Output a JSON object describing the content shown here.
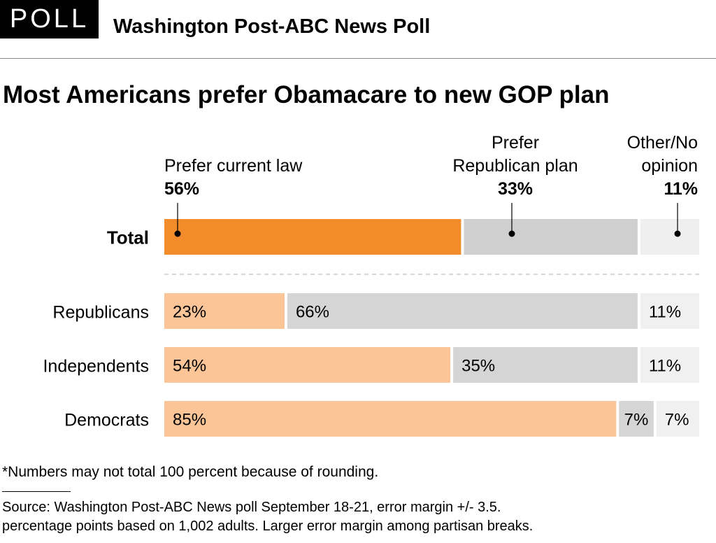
{
  "header": {
    "badge": "POLL",
    "poll_name": "Washington Post-ABC News Poll"
  },
  "colors": {
    "total_current": "#f28c2a",
    "total_republican": "#cfcfcf",
    "total_other": "#efefef",
    "group_current": "#fbc597",
    "group_republican": "#d5d5d5",
    "group_other": "#f0f0f0",
    "divider": "#cccccc"
  },
  "chart_data": {
    "type": "bar",
    "orientation": "horizontal-stacked-100",
    "title": "Most Americans prefer Obamacare to new GOP plan",
    "xlabel": "",
    "ylabel": "",
    "xlim": [
      0,
      100
    ],
    "categories": [
      "Total",
      "Republicans",
      "Independents",
      "Democrats"
    ],
    "series": [
      {
        "name": "Prefer current law",
        "values": [
          56,
          23,
          54,
          85
        ]
      },
      {
        "name": "Prefer Republican plan",
        "values": [
          33,
          66,
          35,
          7
        ]
      },
      {
        "name": "Other/No opinion",
        "values": [
          11,
          11,
          11,
          7
        ]
      }
    ],
    "legend_labels": [
      {
        "lines": [
          "Prefer current law"
        ],
        "value": "56%"
      },
      {
        "lines": [
          "Prefer",
          "Republican plan"
        ],
        "value": "33%"
      },
      {
        "lines": [
          "Other/No",
          "opinion"
        ],
        "value": "11%"
      }
    ],
    "data_labels": [
      [
        "",
        "",
        ""
      ],
      [
        "23%",
        "66%",
        "11%"
      ],
      [
        "54%",
        "35%",
        "11%"
      ],
      [
        "85%",
        "7%",
        "7%"
      ]
    ]
  },
  "footnote": "*Numbers may not total 100 percent because of rounding.",
  "source_lines": [
    "Source: Washington Post-ABC News poll September 18-21, error margin +/- 3.5.",
    "percentage points based on 1,002 adults. Larger error margin among partisan breaks."
  ]
}
